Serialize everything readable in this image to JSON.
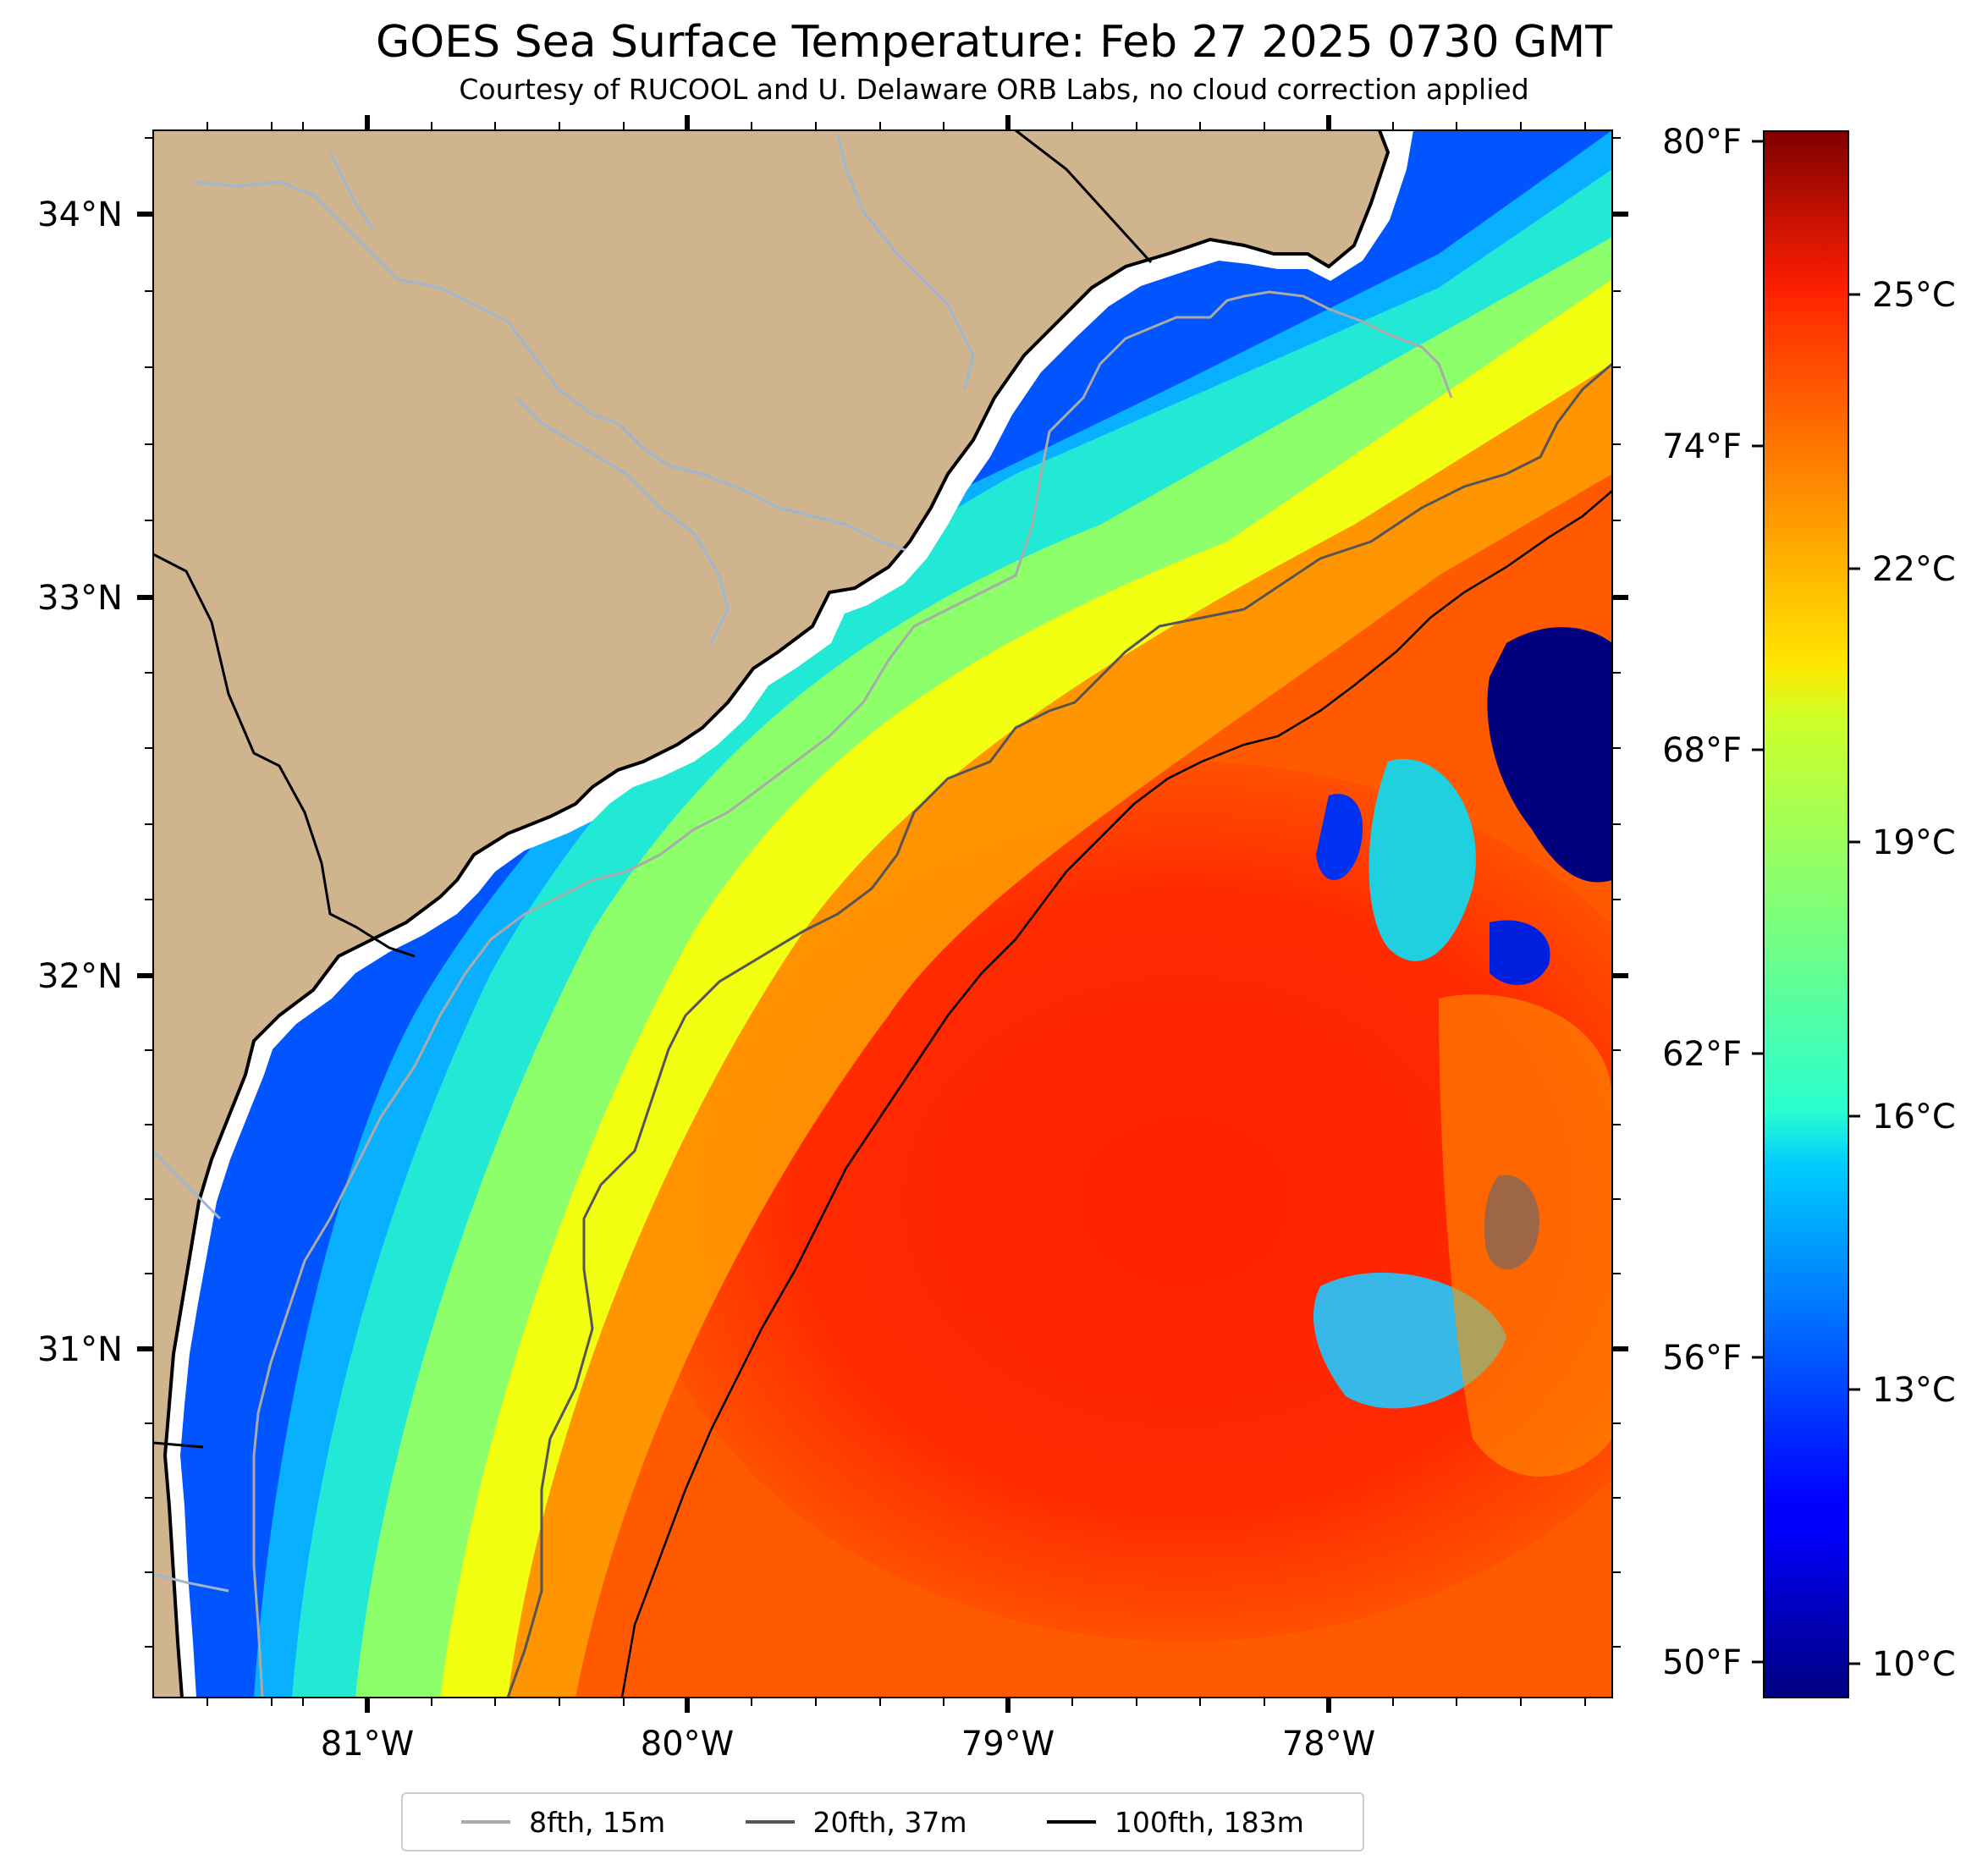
{
  "map": {
    "title": "GOES Sea Surface Temperature: Feb 27 2025 0730 GMT",
    "subtitle": "Courtesy of RUCOOL and U. Delaware ORB Labs, no cloud correction applied",
    "lat_ticks": [
      "34°N",
      "33°N",
      "32°N",
      "31°N"
    ],
    "lon_ticks": [
      "81°W",
      "80°W",
      "79°W",
      "78°W"
    ],
    "extent": {
      "lon": [
        -81.67,
        -77.12
      ],
      "lat": [
        30.08,
        34.22
      ]
    },
    "land_color": "#d0b48e",
    "river_color": "#9fb6d0",
    "colormap": "jet",
    "colorbar": {
      "celsius_range": [
        9.5,
        27.0
      ],
      "fahrenheit_labels": [
        "80°F",
        "74°F",
        "68°F",
        "62°F",
        "56°F",
        "50°F"
      ],
      "celsius_labels": [
        "25°C",
        "22°C",
        "19°C",
        "16°C",
        "13°C",
        "10°C"
      ]
    },
    "legend": [
      {
        "label": "8fth, 15m",
        "color": "#aaaaaa"
      },
      {
        "label": "20fth, 37m",
        "color": "#555555"
      },
      {
        "label": "100fth, 183m",
        "color": "#000000"
      }
    ]
  }
}
